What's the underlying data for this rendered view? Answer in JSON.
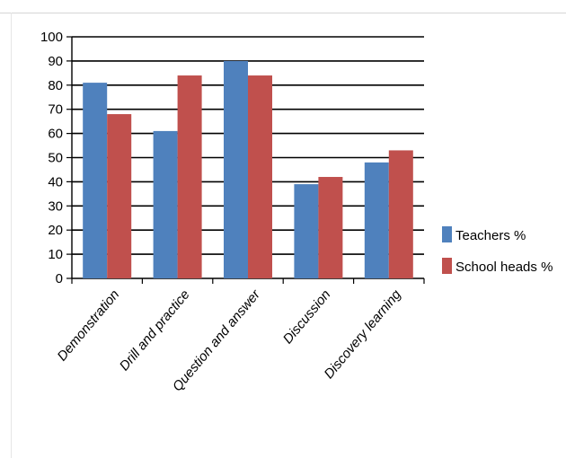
{
  "chart_data": {
    "type": "bar",
    "title": "",
    "xlabel": "",
    "ylabel": "",
    "categories": [
      "Demonstration",
      "Drill and practice",
      "Question and answer",
      "Discussion",
      "Discovery learning"
    ],
    "series": [
      {
        "name": "Teachers %",
        "values": [
          81,
          61,
          90,
          39,
          48
        ],
        "color": "#4f81bd"
      },
      {
        "name": "School heads %",
        "values": [
          68,
          84,
          84,
          42,
          53
        ],
        "color": "#c0504d"
      }
    ],
    "ylim": [
      0,
      100
    ],
    "yticks": [
      "0",
      "10",
      "20",
      "30",
      "40",
      "50",
      "60",
      "70",
      "80",
      "90",
      "100"
    ],
    "grid": true,
    "legend_position": "right"
  }
}
